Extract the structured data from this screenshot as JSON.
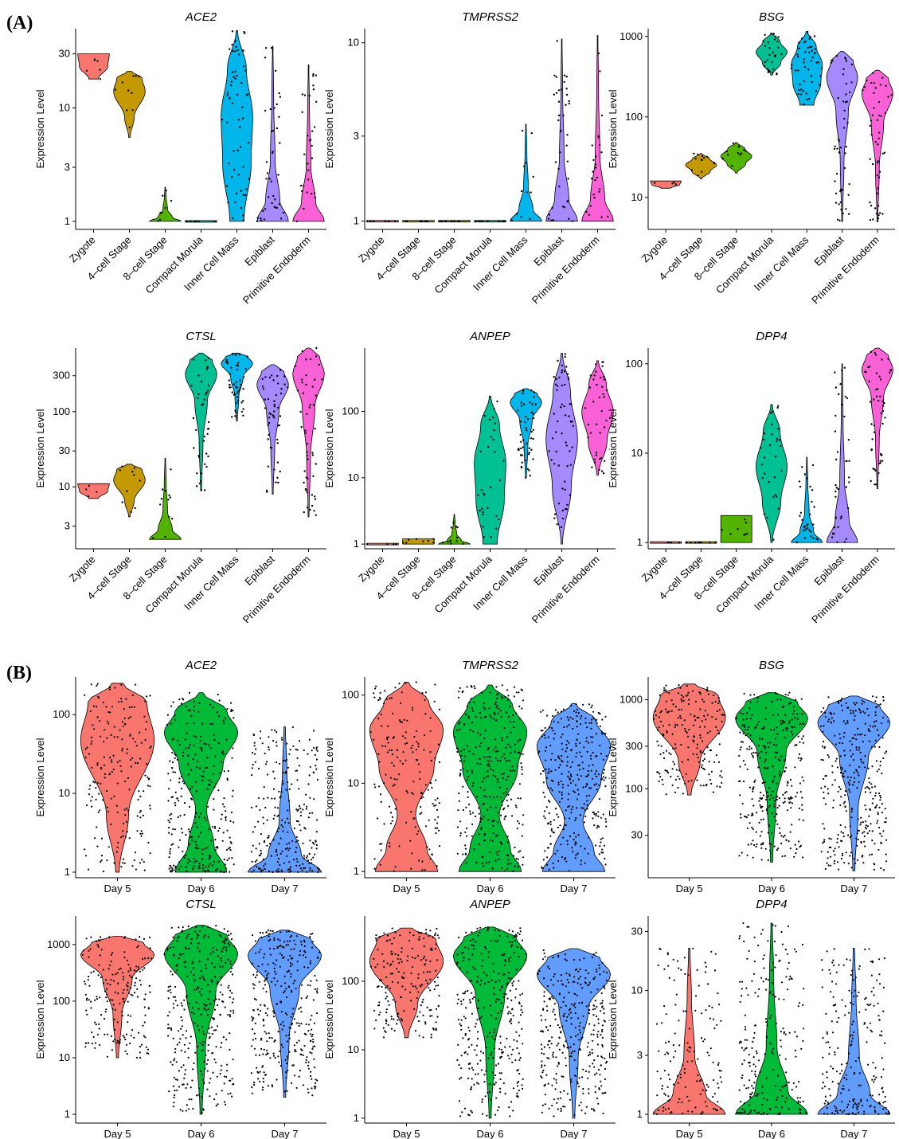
{
  "figure": {
    "section_labels": [
      "(A)",
      "(B)"
    ],
    "ylabel": "Expression Level"
  },
  "colors": {
    "Zygote": "#f8766d",
    "4-cell Stage": "#c49a00",
    "8-cell Stage": "#53b400",
    "Compact Morula": "#00c094",
    "Inner Cell Mass": "#00b6eb",
    "Epiblast": "#a58aff",
    "Primitive Endoderm": "#fb61d7",
    "Day 5": "#f8766d",
    "Day 6": "#00ba38",
    "Day 7": "#619cff"
  },
  "chart_data": [
    {
      "id": "A-ACE2",
      "type": "violin",
      "title": "ACE2",
      "ylabel": "Expression Level",
      "yscale": "log",
      "ylim": [
        0.85,
        50
      ],
      "yticks": [
        1,
        3,
        10,
        30
      ],
      "ytick_labels": [
        "1",
        "3",
        "10",
        "30"
      ],
      "categories": [
        "Zygote",
        "4–cell Stage",
        "8–cell Stage",
        "Compact Morula",
        "Inner Cell Mass",
        "Epiblast",
        "Primitive Endoderm"
      ],
      "violins": [
        {
          "min": 18,
          "max": 30,
          "shape": "tri_up",
          "n": 6
        },
        {
          "min": 5.5,
          "max": 21,
          "shape": "wide_top",
          "n": 10
        },
        {
          "min": 1,
          "max": 2,
          "shape": "bottom",
          "n": 8
        },
        {
          "min": 1,
          "max": 1,
          "shape": "flat",
          "n": 6
        },
        {
          "min": 1,
          "max": 48,
          "shape": "wide_mid",
          "n": 60
        },
        {
          "min": 1,
          "max": 35,
          "shape": "bottom",
          "n": 40
        },
        {
          "min": 1,
          "max": 24,
          "shape": "bottom",
          "n": 30
        }
      ]
    },
    {
      "id": "A-TMPRSS2",
      "type": "violin",
      "title": "TMPRSS2",
      "ylabel": "Expression Level",
      "yscale": "log",
      "ylim": [
        0.9,
        12
      ],
      "yticks": [
        1,
        3,
        10
      ],
      "ytick_labels": [
        "1",
        "3",
        "10"
      ],
      "categories": [
        "Zygote",
        "4–cell Stage",
        "8–cell Stage",
        "Compact Morula",
        "Inner Cell Mass",
        "Epiblast",
        "Primitive Endoderm"
      ],
      "violins": [
        {
          "min": 1,
          "max": 1,
          "shape": "flat",
          "n": 6
        },
        {
          "min": 1,
          "max": 1,
          "shape": "flat",
          "n": 8
        },
        {
          "min": 1,
          "max": 1,
          "shape": "flat",
          "n": 8
        },
        {
          "min": 1,
          "max": 1,
          "shape": "flat",
          "n": 8
        },
        {
          "min": 1,
          "max": 3.5,
          "shape": "bottom",
          "n": 12
        },
        {
          "min": 1,
          "max": 10.5,
          "shape": "bottom",
          "n": 40
        },
        {
          "min": 1,
          "max": 11,
          "shape": "bottom",
          "n": 25
        }
      ]
    },
    {
      "id": "A-BSG",
      "type": "violin",
      "title": "BSG",
      "ylabel": "Expression Level",
      "yscale": "log",
      "ylim": [
        4,
        1250
      ],
      "yticks": [
        10,
        100,
        1000
      ],
      "ytick_labels": [
        "10",
        "100",
        "1000"
      ],
      "categories": [
        "Zygote",
        "4–cell Stage",
        "8–cell Stage",
        "Compact Morula",
        "Inner Cell Mass",
        "Epiblast",
        "Primitive Endoderm"
      ],
      "violins": [
        {
          "min": 13,
          "max": 16,
          "shape": "tri_up",
          "n": 4
        },
        {
          "min": 17,
          "max": 35,
          "shape": "mid",
          "n": 12
        },
        {
          "min": 20,
          "max": 48,
          "shape": "mid",
          "n": 12
        },
        {
          "min": 330,
          "max": 1100,
          "shape": "mid",
          "n": 30
        },
        {
          "min": 140,
          "max": 1150,
          "shape": "wide_mid",
          "n": 50
        },
        {
          "min": 5,
          "max": 650,
          "shape": "top",
          "n": 50
        },
        {
          "min": 5,
          "max": 380,
          "shape": "top",
          "n": 50
        }
      ]
    },
    {
      "id": "A-CTSL",
      "type": "violin",
      "title": "CTSL",
      "ylabel": "Expression Level",
      "yscale": "log",
      "ylim": [
        1.5,
        700
      ],
      "yticks": [
        3,
        10,
        30,
        100,
        300
      ],
      "ytick_labels": [
        "3",
        "10",
        "30",
        "100",
        "300"
      ],
      "categories": [
        "Zygote",
        "4–cell Stage",
        "8–cell Stage",
        "Compact Morula",
        "Inner Cell Mass",
        "Epiblast",
        "Primitive Endoderm"
      ],
      "violins": [
        {
          "min": 7,
          "max": 11,
          "shape": "tri_up",
          "n": 4
        },
        {
          "min": 4,
          "max": 20,
          "shape": "wide_top",
          "n": 10
        },
        {
          "min": 2,
          "max": 24,
          "shape": "bottom",
          "n": 12
        },
        {
          "min": 9,
          "max": 600,
          "shape": "top",
          "n": 40
        },
        {
          "min": 75,
          "max": 600,
          "shape": "top",
          "n": 50
        },
        {
          "min": 8,
          "max": 420,
          "shape": "top",
          "n": 50
        },
        {
          "min": 4,
          "max": 700,
          "shape": "top",
          "n": 50
        }
      ]
    },
    {
      "id": "A-ANPEP",
      "type": "violin",
      "title": "ANPEP",
      "ylabel": "Expression Level",
      "yscale": "log",
      "ylim": [
        0.85,
        900
      ],
      "yticks": [
        1,
        10,
        100
      ],
      "ytick_labels": [
        "1",
        "10",
        "100"
      ],
      "categories": [
        "Zygote",
        "4–cell Stage",
        "8–cell Stage",
        "Compact Morula",
        "Inner Cell Mass",
        "Epiblast",
        "Primitive Endoderm"
      ],
      "violins": [
        {
          "min": 1,
          "max": 1,
          "shape": "flat",
          "n": 4
        },
        {
          "min": 1,
          "max": 1.2,
          "shape": "flat",
          "n": 8
        },
        {
          "min": 1,
          "max": 2.8,
          "shape": "bottom",
          "n": 12
        },
        {
          "min": 1,
          "max": 170,
          "shape": "wide_mid",
          "n": 30
        },
        {
          "min": 10,
          "max": 220,
          "shape": "top",
          "n": 50
        },
        {
          "min": 1,
          "max": 750,
          "shape": "mid",
          "n": 60
        },
        {
          "min": 11,
          "max": 580,
          "shape": "mid",
          "n": 40
        }
      ]
    },
    {
      "id": "A-DPP4",
      "type": "violin",
      "title": "DPP4",
      "ylabel": "Expression Level",
      "yscale": "log",
      "ylim": [
        0.85,
        150
      ],
      "yticks": [
        1,
        10,
        100
      ],
      "ytick_labels": [
        "1",
        "10",
        "100"
      ],
      "categories": [
        "Zygote",
        "4–cell Stage",
        "8–cell Stage",
        "Compact Morula",
        "Inner Cell Mass",
        "Epiblast",
        "Primitive Endoderm"
      ],
      "violins": [
        {
          "min": 1,
          "max": 1,
          "shape": "flat",
          "n": 4
        },
        {
          "min": 1,
          "max": 1,
          "shape": "flat",
          "n": 8
        },
        {
          "min": 1,
          "max": 2,
          "shape": "flat",
          "n": 8
        },
        {
          "min": 1,
          "max": 35,
          "shape": "mid",
          "n": 30
        },
        {
          "min": 1,
          "max": 9,
          "shape": "bottom",
          "n": 30
        },
        {
          "min": 1,
          "max": 100,
          "shape": "bottom",
          "n": 40
        },
        {
          "min": 4,
          "max": 150,
          "shape": "top",
          "n": 50
        }
      ]
    },
    {
      "id": "B-ACE2",
      "type": "violin",
      "title": "ACE2",
      "ylabel": "Expression Level",
      "yscale": "log",
      "ylim": [
        0.85,
        300
      ],
      "yticks": [
        1,
        10,
        100
      ],
      "ytick_labels": [
        "1",
        "10",
        "100"
      ],
      "categories": [
        "Day 5",
        "Day 6",
        "Day 7"
      ],
      "violins": [
        {
          "min": 1,
          "max": 250,
          "shape": "wide_top",
          "n": 200
        },
        {
          "min": 1,
          "max": 190,
          "shape": "bottom_top",
          "n": 300
        },
        {
          "min": 1,
          "max": 70,
          "shape": "bottom",
          "n": 260
        }
      ]
    },
    {
      "id": "B-TMPRSS2",
      "type": "violin",
      "title": "TMPRSS2",
      "ylabel": "Expression Level",
      "yscale": "log",
      "ylim": [
        0.85,
        160
      ],
      "yticks": [
        1,
        10,
        100
      ],
      "ytick_labels": [
        "1",
        "10",
        "100"
      ],
      "categories": [
        "Day 5",
        "Day 6",
        "Day 7"
      ],
      "violins": [
        {
          "min": 1,
          "max": 140,
          "shape": "top_bottom",
          "n": 180
        },
        {
          "min": 1,
          "max": 130,
          "shape": "top_bottom",
          "n": 320
        },
        {
          "min": 1,
          "max": 80,
          "shape": "top_bottom",
          "n": 340
        }
      ]
    },
    {
      "id": "B-BSG",
      "type": "violin",
      "title": "BSG",
      "ylabel": "Expression Level",
      "yscale": "log",
      "ylim": [
        10,
        1800
      ],
      "yticks": [
        30,
        100,
        300,
        1000
      ],
      "ytick_labels": [
        "30",
        "100",
        "300",
        "1000"
      ],
      "categories": [
        "Day 5",
        "Day 6",
        "Day 7"
      ],
      "violins": [
        {
          "min": 85,
          "max": 1500,
          "shape": "wide_top",
          "n": 200
        },
        {
          "min": 15,
          "max": 1200,
          "shape": "top",
          "n": 320
        },
        {
          "min": 12,
          "max": 1100,
          "shape": "top",
          "n": 340
        }
      ]
    },
    {
      "id": "B-CTSL",
      "type": "violin",
      "title": "CTSL",
      "ylabel": "Expression Level",
      "yscale": "log",
      "ylim": [
        0.7,
        3200
      ],
      "yticks": [
        1,
        10,
        100,
        1000
      ],
      "ytick_labels": [
        "1",
        "10",
        "100",
        "1000"
      ],
      "categories": [
        "Day 5",
        "Day 6",
        "Day 7"
      ],
      "violins": [
        {
          "min": 10,
          "max": 1400,
          "shape": "top",
          "n": 200
        },
        {
          "min": 1,
          "max": 2200,
          "shape": "top",
          "n": 340
        },
        {
          "min": 2,
          "max": 1800,
          "shape": "top",
          "n": 340
        }
      ]
    },
    {
      "id": "B-ANPEP",
      "type": "violin",
      "title": "ANPEP",
      "ylabel": "Expression Level",
      "yscale": "log",
      "ylim": [
        0.85,
        900
      ],
      "yticks": [
        1,
        10,
        100
      ],
      "ytick_labels": [
        "1",
        "10",
        "100"
      ],
      "categories": [
        "Day 5",
        "Day 6",
        "Day 7"
      ],
      "violins": [
        {
          "min": 15,
          "max": 600,
          "shape": "wide_top",
          "n": 200
        },
        {
          "min": 1,
          "max": 620,
          "shape": "top",
          "n": 330
        },
        {
          "min": 1,
          "max": 300,
          "shape": "top",
          "n": 340
        }
      ]
    },
    {
      "id": "B-DPP4",
      "type": "violin",
      "title": "DPP4",
      "ylabel": "Expression Level",
      "yscale": "log",
      "ylim": [
        0.85,
        40
      ],
      "yticks": [
        1,
        3,
        10,
        30
      ],
      "ytick_labels": [
        "1",
        "3",
        "10",
        "30"
      ],
      "categories": [
        "Day 5",
        "Day 6",
        "Day 7"
      ],
      "violins": [
        {
          "min": 1,
          "max": 22,
          "shape": "bottom",
          "n": 150
        },
        {
          "min": 1,
          "max": 35,
          "shape": "bottom",
          "n": 220
        },
        {
          "min": 1,
          "max": 22,
          "shape": "bottom",
          "n": 220
        }
      ]
    }
  ]
}
